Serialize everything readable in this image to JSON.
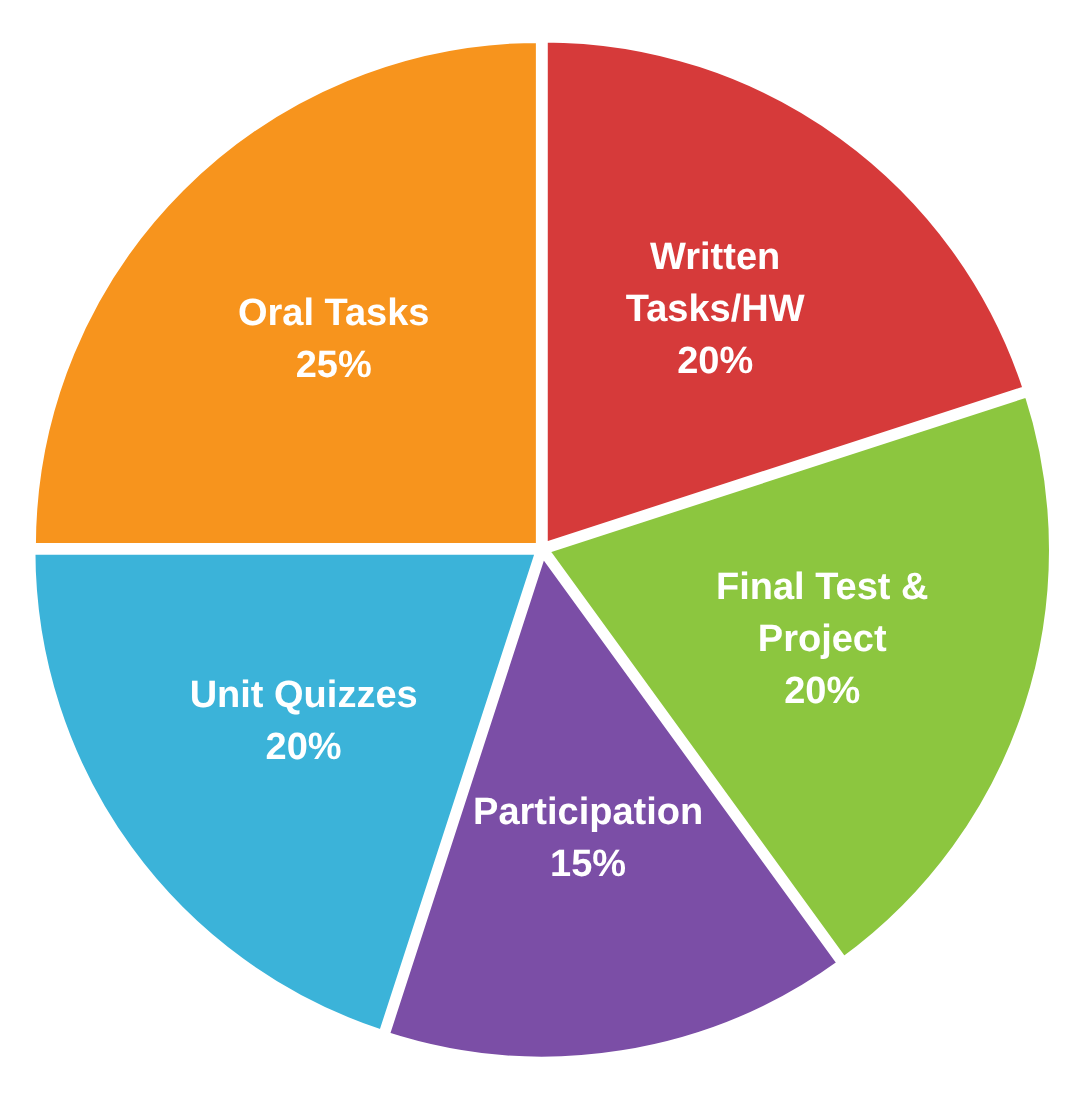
{
  "chart_data": {
    "type": "pie",
    "categories": [
      "Written Tasks/HW",
      "Final Test & Project",
      "Participation",
      "Unit Quizzes",
      "Oral Tasks"
    ],
    "values": [
      20,
      20,
      15,
      20,
      25
    ],
    "colors": [
      "#d63a3a",
      "#8cc63f",
      "#7b4ea6",
      "#3bb3d9",
      "#f7941d"
    ],
    "value_labels": [
      "20%",
      "20%",
      "15%",
      "20%",
      "25%"
    ],
    "legend": false
  }
}
